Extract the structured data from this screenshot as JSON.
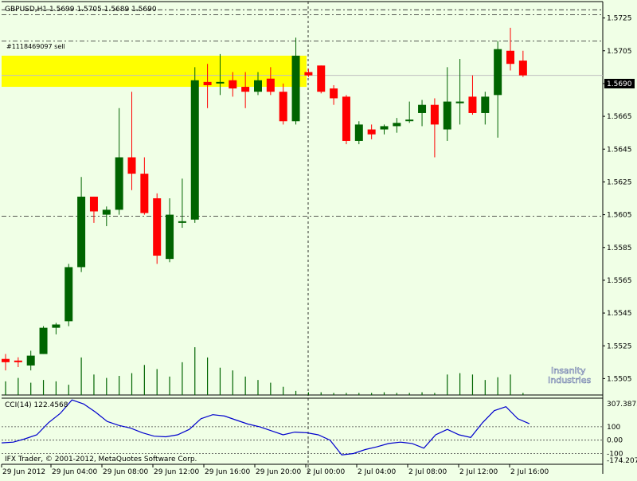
{
  "header": {
    "symbol_line": "GBPUSD,H1  1.5699 1.5705 1.5689 1.5690"
  },
  "order_label": "#1118469097 sell",
  "current_price": "1.5690",
  "watermark": [
    "Insanity",
    "Industries"
  ],
  "copyright": "IFX Trader, © 2001-2012, MetaQuotes Software Corp.",
  "indicator": {
    "label": "CCI(14) 122.4568",
    "scale_labels": [
      "307.3875",
      "100",
      "0.00",
      "-100",
      "-174.207"
    ]
  },
  "colors": {
    "background": "#f0ffe6",
    "bull": "#006400",
    "bear": "#ff0000",
    "zone": "#ffff00",
    "level_line": "#b22222",
    "cci_line": "#0000cd",
    "grid": "#000000"
  },
  "chart_data": [
    {
      "type": "candlestick",
      "title": "GBPUSD,H1",
      "ylim": [
        1.5495,
        1.5735
      ],
      "yticks": [
        "1.5725",
        "1.5705",
        "1.5685",
        "1.5665",
        "1.5645",
        "1.5625",
        "1.5605",
        "1.5585",
        "1.5565",
        "1.5545",
        "1.5525",
        "1.5505"
      ],
      "xticks": [
        "29 Jun 2012",
        "29 Jun 04:00",
        "29 Jun 08:00",
        "29 Jun 12:00",
        "29 Jun 16:00",
        "29 Jun 20:00",
        "2 Jul 00:00",
        "2 Jul 04:00",
        "2 Jul 08:00",
        "2 Jul 12:00",
        "2 Jul 16:00"
      ],
      "zone": {
        "from": 1.5683,
        "to": 1.5702
      },
      "horizontal_levels": [
        1.573,
        1.5727,
        1.5711,
        1.5604
      ],
      "current_price": 1.569,
      "series": [
        {
          "open": 1.5517,
          "high": 1.552,
          "low": 1.551,
          "close": 1.5515
        },
        {
          "open": 1.5516,
          "high": 1.5518,
          "low": 1.5512,
          "close": 1.5515
        },
        {
          "open": 1.5513,
          "high": 1.5522,
          "low": 1.551,
          "close": 1.5519
        },
        {
          "open": 1.552,
          "high": 1.5537,
          "low": 1.552,
          "close": 1.5536
        },
        {
          "open": 1.5536,
          "high": 1.5539,
          "low": 1.5532,
          "close": 1.5538
        },
        {
          "open": 1.554,
          "high": 1.5575,
          "low": 1.5537,
          "close": 1.5573
        },
        {
          "open": 1.5573,
          "high": 1.5628,
          "low": 1.557,
          "close": 1.5616
        },
        {
          "open": 1.5616,
          "high": 1.5616,
          "low": 1.56,
          "close": 1.5607
        },
        {
          "open": 1.5605,
          "high": 1.561,
          "low": 1.5598,
          "close": 1.5608
        },
        {
          "open": 1.5608,
          "high": 1.567,
          "low": 1.5605,
          "close": 1.564
        },
        {
          "open": 1.564,
          "high": 1.568,
          "low": 1.562,
          "close": 1.563
        },
        {
          "open": 1.563,
          "high": 1.564,
          "low": 1.5605,
          "close": 1.5606
        },
        {
          "open": 1.5615,
          "high": 1.5618,
          "low": 1.5575,
          "close": 1.558
        },
        {
          "open": 1.5578,
          "high": 1.5615,
          "low": 1.5576,
          "close": 1.5605
        },
        {
          "open": 1.56,
          "high": 1.5627,
          "low": 1.5597,
          "close": 1.5601
        },
        {
          "open": 1.5602,
          "high": 1.5695,
          "low": 1.56,
          "close": 1.5687
        },
        {
          "open": 1.5686,
          "high": 1.5697,
          "low": 1.567,
          "close": 1.5684
        },
        {
          "open": 1.5686,
          "high": 1.5703,
          "low": 1.5678,
          "close": 1.5686
        },
        {
          "open": 1.5687,
          "high": 1.5692,
          "low": 1.5677,
          "close": 1.5682
        },
        {
          "open": 1.5683,
          "high": 1.5692,
          "low": 1.567,
          "close": 1.568
        },
        {
          "open": 1.568,
          "high": 1.5692,
          "low": 1.5678,
          "close": 1.5687
        },
        {
          "open": 1.5688,
          "high": 1.5695,
          "low": 1.5678,
          "close": 1.568
        },
        {
          "open": 1.568,
          "high": 1.5685,
          "low": 1.566,
          "close": 1.5662
        },
        {
          "open": 1.5662,
          "high": 1.5713,
          "low": 1.566,
          "close": 1.5702
        },
        {
          "open": 1.5692,
          "high": 1.5694,
          "low": 1.5689,
          "close": 1.569
        },
        {
          "open": 1.5696,
          "high": 1.5696,
          "low": 1.5679,
          "close": 1.568
        },
        {
          "open": 1.5682,
          "high": 1.5684,
          "low": 1.5672,
          "close": 1.5676
        },
        {
          "open": 1.5677,
          "high": 1.5678,
          "low": 1.5648,
          "close": 1.565
        },
        {
          "open": 1.565,
          "high": 1.5662,
          "low": 1.5648,
          "close": 1.566
        },
        {
          "open": 1.5657,
          "high": 1.566,
          "low": 1.5651,
          "close": 1.5654
        },
        {
          "open": 1.5657,
          "high": 1.566,
          "low": 1.5654,
          "close": 1.5659
        },
        {
          "open": 1.5659,
          "high": 1.5664,
          "low": 1.5655,
          "close": 1.5661
        },
        {
          "open": 1.5663,
          "high": 1.5674,
          "low": 1.5661,
          "close": 1.5663
        },
        {
          "open": 1.5667,
          "high": 1.5675,
          "low": 1.5659,
          "close": 1.5672
        },
        {
          "open": 1.5672,
          "high": 1.5676,
          "low": 1.564,
          "close": 1.566
        },
        {
          "open": 1.5657,
          "high": 1.5695,
          "low": 1.565,
          "close": 1.5674
        },
        {
          "open": 1.5673,
          "high": 1.57,
          "low": 1.566,
          "close": 1.5674
        },
        {
          "open": 1.5677,
          "high": 1.569,
          "low": 1.5666,
          "close": 1.5667
        },
        {
          "open": 1.5667,
          "high": 1.568,
          "low": 1.566,
          "close": 1.5677
        },
        {
          "open": 1.5678,
          "high": 1.5711,
          "low": 1.5652,
          "close": 1.5706
        },
        {
          "open": 1.5705,
          "high": 1.5719,
          "low": 1.5693,
          "close": 1.5697
        },
        {
          "open": 1.5699,
          "high": 1.5705,
          "low": 1.5689,
          "close": 1.569
        }
      ],
      "volume": [
        20,
        25,
        18,
        22,
        20,
        15,
        55,
        30,
        25,
        28,
        32,
        44,
        38,
        27,
        48,
        70,
        55,
        40,
        36,
        27,
        22,
        18,
        12,
        6,
        4,
        4,
        3,
        3,
        3,
        3,
        4,
        3,
        3,
        4,
        3,
        30,
        32,
        30,
        22,
        26,
        30,
        3
      ]
    },
    {
      "type": "line",
      "title": "CCI(14) 122.4568",
      "ylim": [
        -174.207,
        307.3875
      ],
      "levels": [
        100,
        0,
        -100
      ],
      "values": [
        -20,
        -15,
        10,
        40,
        130,
        200,
        300,
        270,
        210,
        140,
        110,
        90,
        55,
        30,
        25,
        40,
        80,
        160,
        190,
        180,
        150,
        120,
        100,
        70,
        40,
        60,
        55,
        40,
        0,
        -110,
        -100,
        -70,
        -50,
        -25,
        -15,
        -25,
        -60,
        40,
        80,
        40,
        20,
        130,
        220,
        250,
        160,
        122.46
      ]
    }
  ]
}
